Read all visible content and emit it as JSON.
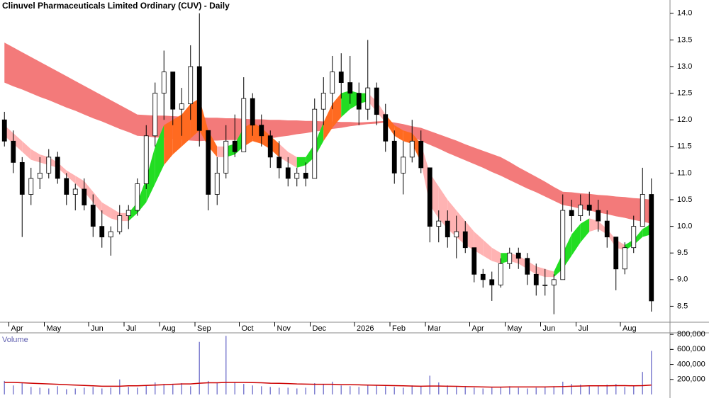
{
  "chart_data": [
    {
      "type": "candlestick",
      "title": "Clinuvel Pharmaceuticals Limited Ordinary (CUV) - Daily",
      "categories": [
        null,
        "Apr",
        null,
        null,
        null,
        "May",
        null,
        null,
        null,
        null,
        "Jun",
        null,
        null,
        null,
        "Jul",
        null,
        null,
        null,
        "Aug",
        null,
        null,
        null,
        "Sep",
        null,
        null,
        null,
        null,
        "Oct",
        null,
        null,
        null,
        "Nov",
        null,
        null,
        null,
        "Dec",
        null,
        null,
        null,
        null,
        "2026",
        null,
        null,
        null,
        "Feb",
        null,
        null,
        null,
        "Mar",
        null,
        null,
        null,
        null,
        "Apr",
        null,
        null,
        null,
        "May",
        null,
        null,
        null,
        "Jun",
        null,
        null,
        null,
        "Jul",
        null,
        null,
        null,
        null,
        "Aug",
        null,
        null,
        null
      ],
      "open": [
        12.0,
        11.6,
        11.2,
        10.6,
        10.9,
        11.0,
        11.3,
        10.9,
        10.6,
        10.7,
        10.4,
        10.0,
        9.8,
        9.9,
        10.2,
        10.3,
        10.8,
        11.7,
        12.5,
        12.9,
        12.2,
        12.3,
        13.0,
        11.8,
        10.6,
        11.0,
        11.6,
        11.4,
        12.4,
        11.9,
        11.7,
        11.3,
        11.1,
        10.9,
        11.0,
        10.9,
        12.2,
        12.5,
        12.9,
        12.7,
        12.5,
        12.2,
        12.6,
        12.1,
        11.6,
        11.0,
        11.3,
        11.6,
        11.1,
        10.0,
        10.1,
        9.8,
        9.9,
        9.6,
        9.1,
        9.0,
        8.9,
        9.3,
        9.5,
        9.4,
        9.1,
        8.9,
        8.9,
        9.0,
        10.3,
        10.2,
        10.4,
        10.3,
        10.1,
        9.8,
        9.2,
        9.6,
        10.0,
        10.6
      ],
      "high": [
        12.15,
        11.8,
        11.3,
        11.1,
        11.3,
        11.45,
        11.4,
        11.0,
        10.8,
        10.9,
        10.6,
        10.3,
        10.0,
        10.4,
        10.4,
        10.9,
        11.9,
        12.7,
        13.3,
        12.9,
        12.6,
        13.4,
        14.0,
        11.8,
        11.3,
        11.9,
        12.1,
        12.8,
        12.5,
        12.1,
        11.8,
        11.6,
        11.3,
        11.1,
        11.2,
        12.4,
        12.8,
        13.2,
        13.25,
        13.2,
        12.7,
        13.5,
        12.7,
        12.3,
        11.8,
        11.6,
        12.0,
        11.8,
        11.1,
        10.3,
        10.3,
        10.2,
        10.1,
        9.6,
        9.2,
        9.15,
        9.4,
        9.6,
        9.6,
        9.5,
        9.3,
        9.2,
        9.1,
        10.6,
        10.5,
        10.6,
        10.65,
        10.5,
        10.3,
        9.8,
        9.7,
        10.2,
        11.1,
        10.9
      ],
      "low": [
        11.5,
        11.0,
        9.8,
        10.4,
        10.7,
        10.9,
        10.8,
        10.4,
        10.3,
        10.3,
        9.8,
        9.6,
        9.45,
        9.85,
        9.95,
        10.2,
        10.7,
        11.5,
        12.0,
        11.9,
        11.7,
        12.0,
        11.5,
        10.3,
        10.4,
        10.9,
        11.3,
        11.4,
        11.7,
        11.5,
        11.1,
        10.9,
        10.75,
        10.75,
        10.75,
        10.9,
        11.9,
        12.2,
        12.4,
        12.3,
        11.9,
        12.0,
        11.9,
        11.4,
        10.8,
        10.6,
        11.2,
        11.0,
        9.7,
        9.7,
        9.6,
        9.4,
        9.5,
        8.95,
        8.85,
        8.6,
        8.85,
        9.2,
        9.2,
        8.9,
        8.7,
        8.7,
        8.35,
        9.0,
        9.9,
        10.1,
        10.2,
        9.9,
        9.6,
        8.8,
        9.1,
        9.5,
        10.0,
        8.4
      ],
      "close": [
        11.6,
        11.2,
        10.6,
        10.9,
        11.0,
        11.3,
        10.9,
        10.6,
        10.7,
        10.4,
        10.0,
        9.8,
        9.9,
        10.2,
        10.3,
        10.8,
        11.7,
        12.5,
        12.9,
        12.2,
        12.3,
        13.0,
        11.8,
        10.6,
        11.0,
        11.6,
        11.4,
        12.4,
        11.9,
        11.7,
        11.3,
        11.1,
        10.9,
        11.0,
        10.9,
        12.2,
        12.5,
        12.9,
        12.7,
        12.5,
        12.2,
        12.6,
        12.1,
        11.6,
        11.0,
        11.3,
        11.6,
        11.1,
        10.0,
        10.1,
        9.8,
        9.9,
        9.6,
        9.1,
        9.0,
        8.9,
        9.3,
        9.5,
        9.4,
        9.1,
        8.9,
        8.9,
        9.0,
        10.3,
        10.2,
        10.4,
        10.3,
        10.1,
        9.8,
        9.2,
        9.6,
        10.0,
        10.6,
        8.6
      ],
      "up_color": "#ffffff",
      "down_color": "#000000",
      "bands": [
        {
          "color": "#f26b6b",
          "upper": [
            13.45,
            13.36,
            13.27,
            13.18,
            13.09,
            13.0,
            12.91,
            12.82,
            12.73,
            12.64,
            12.55,
            12.46,
            12.37,
            12.28,
            12.19,
            12.1,
            12.09,
            12.08,
            12.08,
            12.07,
            12.06,
            12.06,
            12.05,
            12.04,
            12.04,
            12.03,
            12.03,
            12.02,
            12.01,
            12.01,
            12.0,
            12.0,
            11.99,
            11.99,
            11.98,
            11.98,
            11.97,
            11.97,
            11.96,
            11.96,
            11.95,
            11.96,
            11.97,
            11.98,
            11.95,
            11.92,
            11.88,
            11.85,
            11.79,
            11.73,
            11.67,
            11.61,
            11.54,
            11.48,
            11.42,
            11.36,
            11.3,
            11.21,
            11.11,
            11.02,
            10.93,
            10.84,
            10.74,
            10.65,
            10.64,
            10.62,
            10.61,
            10.59,
            10.58,
            10.56,
            10.55,
            10.53,
            10.52,
            10.5
          ],
          "lower": [
            12.7,
            12.63,
            12.57,
            12.5,
            12.43,
            12.37,
            12.3,
            12.23,
            12.17,
            12.1,
            12.03,
            11.97,
            11.9,
            11.83,
            11.77,
            11.7,
            11.69,
            11.67,
            11.66,
            11.64,
            11.63,
            11.61,
            11.6,
            11.61,
            11.61,
            11.62,
            11.62,
            11.63,
            11.64,
            11.64,
            11.65,
            11.68,
            11.7,
            11.73,
            11.75,
            11.78,
            11.8,
            11.83,
            11.85,
            11.88,
            11.9,
            11.92,
            11.93,
            11.95,
            11.86,
            11.78,
            11.69,
            11.6,
            11.53,
            11.46,
            11.38,
            11.31,
            11.24,
            11.17,
            11.1,
            11.02,
            10.95,
            10.87,
            10.79,
            10.71,
            10.64,
            10.56,
            10.48,
            10.4,
            10.37,
            10.33,
            10.3,
            10.26,
            10.23,
            10.19,
            10.16,
            10.12,
            10.09,
            10.05
          ]
        },
        {
          "up_color": "#22dd22",
          "down_color": "#ffb3b3",
          "upper": [
            11.9,
            11.75,
            11.6,
            11.45,
            11.35,
            11.3,
            11.2,
            11.05,
            10.95,
            10.85,
            10.65,
            10.45,
            10.35,
            10.25,
            10.25,
            10.45,
            10.9,
            11.5,
            11.9,
            12.0,
            12.1,
            12.3,
            12.4,
            11.8,
            11.5,
            11.5,
            11.55,
            11.85,
            11.95,
            11.85,
            11.7,
            11.55,
            11.4,
            11.3,
            11.3,
            11.55,
            11.95,
            12.3,
            12.5,
            12.55,
            12.5,
            12.5,
            12.35,
            12.1,
            11.9,
            11.8,
            11.75,
            11.55,
            11.0,
            10.75,
            10.5,
            10.3,
            10.1,
            9.9,
            9.75,
            9.6,
            9.5,
            9.5,
            9.45,
            9.35,
            9.25,
            9.2,
            9.15,
            9.5,
            9.85,
            10.05,
            10.15,
            10.1,
            9.95,
            9.75,
            9.65,
            9.75,
            9.95,
            10.05
          ],
          "lower": [
            11.7,
            11.55,
            11.4,
            11.25,
            11.2,
            11.15,
            11.1,
            10.95,
            10.8,
            10.65,
            10.45,
            10.25,
            10.15,
            10.1,
            10.1,
            10.25,
            10.45,
            10.8,
            11.15,
            11.35,
            11.5,
            11.65,
            11.8,
            11.5,
            11.3,
            11.3,
            11.35,
            11.5,
            11.6,
            11.55,
            11.45,
            11.3,
            11.2,
            11.1,
            11.15,
            11.3,
            11.6,
            11.85,
            12.05,
            12.2,
            12.3,
            12.35,
            12.15,
            11.95,
            11.7,
            11.6,
            11.55,
            11.2,
            10.4,
            10.15,
            9.95,
            9.8,
            9.65,
            9.55,
            9.45,
            9.35,
            9.3,
            9.35,
            9.3,
            9.2,
            9.1,
            9.05,
            9.05,
            9.2,
            9.45,
            9.7,
            9.9,
            9.95,
            9.85,
            9.6,
            9.55,
            9.65,
            9.8,
            9.85
          ]
        }
      ],
      "ylim": [
        8.2,
        14.25
      ],
      "yticks": [
        {
          "value": 8.5,
          "label": "8.5"
        },
        {
          "value": 9,
          "label": "9.0"
        },
        9.5,
        {
          "value": 10,
          "label": "10.0"
        },
        10.5,
        {
          "value": 11,
          "label": "11.0"
        },
        11.5,
        {
          "value": 12,
          "label": "12.0"
        },
        12.5,
        {
          "value": 13,
          "label": "13.0"
        },
        13.5,
        {
          "value": 14,
          "label": "14.0"
        }
      ]
    },
    {
      "type": "bar",
      "title": "Volume",
      "color": "#8080d0",
      "values": [
        180000,
        120000,
        150000,
        100000,
        90000,
        80000,
        110000,
        70000,
        80000,
        90000,
        100000,
        80000,
        90000,
        200000,
        100000,
        90000,
        120000,
        160000,
        140000,
        130000,
        150000,
        110000,
        700000,
        180000,
        150000,
        780000,
        160000,
        140000,
        120000,
        110000,
        100000,
        90000,
        90000,
        80000,
        90000,
        150000,
        140000,
        170000,
        120000,
        110000,
        100000,
        130000,
        120000,
        110000,
        100000,
        90000,
        120000,
        110000,
        250000,
        160000,
        120000,
        100000,
        110000,
        90000,
        80000,
        90000,
        100000,
        110000,
        90000,
        80000,
        90000,
        100000,
        110000,
        170000,
        140000,
        130000,
        120000,
        110000,
        130000,
        140000,
        100000,
        120000,
        300000,
        580000
      ],
      "average": {
        "color": "#cc0000",
        "values": [
          160000,
          160000,
          155000,
          150000,
          145000,
          140000,
          135000,
          130000,
          125000,
          120000,
          115000,
          110000,
          110000,
          110000,
          115000,
          115000,
          120000,
          125000,
          130000,
          135000,
          140000,
          140000,
          150000,
          155000,
          155000,
          160000,
          160000,
          160000,
          158000,
          155000,
          150000,
          148000,
          145000,
          140000,
          138000,
          135000,
          135000,
          135000,
          130000,
          130000,
          128000,
          125000,
          122000,
          120000,
          118000,
          115000,
          112000,
          110000,
          112000,
          112000,
          110000,
          108000,
          105000,
          102000,
          100000,
          98000,
          98000,
          100000,
          100000,
          100000,
          100000,
          100000,
          102000,
          105000,
          110000,
          112000,
          115000,
          115000,
          115000,
          118000,
          118000,
          115000,
          118000,
          125000
        ]
      },
      "ylim": [
        0,
        820000
      ],
      "yticks": [
        {
          "value": 200000,
          "label": "200,000"
        },
        {
          "value": 400000,
          "label": "400,000"
        },
        {
          "value": 600000,
          "label": "600,000"
        },
        {
          "value": 800000,
          "label": "800,000"
        }
      ]
    }
  ]
}
